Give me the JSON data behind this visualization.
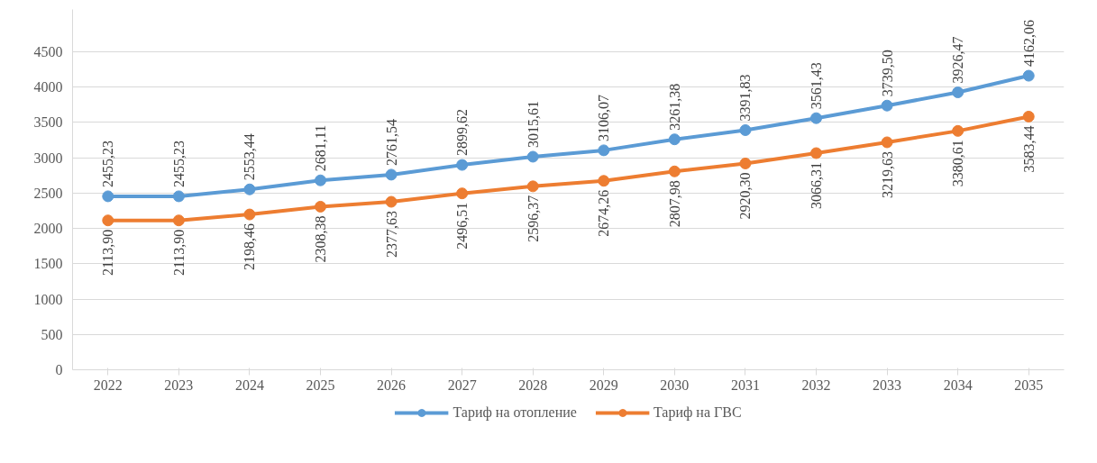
{
  "chart_data": {
    "type": "line",
    "categories": [
      "2022",
      "2023",
      "2024",
      "2025",
      "2026",
      "2027",
      "2028",
      "2029",
      "2030",
      "2031",
      "2032",
      "2033",
      "2034",
      "2035"
    ],
    "series": [
      {
        "name": "Тариф на отопление",
        "color": "#5b9bd5",
        "values": [
          2455.23,
          2455.23,
          2553.44,
          2681.11,
          2761.54,
          2899.62,
          3015.61,
          3106.07,
          3261.38,
          3391.83,
          3561.43,
          3739.5,
          3926.47,
          4162.06
        ],
        "value_labels": [
          "2455,23",
          "2455,23",
          "2553,44",
          "2681,11",
          "2761,54",
          "2899,62",
          "3015,61",
          "3106,07",
          "3261,38",
          "3391,83",
          "3561,43",
          "3739,50",
          "3926,47",
          "4162,06"
        ]
      },
      {
        "name": "Тариф на ГВС",
        "color": "#ed7d31",
        "values": [
          2113.9,
          2113.9,
          2198.46,
          2308.38,
          2377.63,
          2496.51,
          2596.37,
          2674.26,
          2807.98,
          2920.3,
          3066.31,
          3219.63,
          3380.61,
          3583.44
        ],
        "value_labels": [
          "2113,90",
          "2113,90",
          "2198,46",
          "2308,38",
          "2377,63",
          "2496,51",
          "2596,37",
          "2674,26",
          "2807,98",
          "2920,30",
          "3066,31",
          "3219,63",
          "3380,61",
          "3583,44"
        ]
      }
    ],
    "ylim": [
      0,
      5100
    ],
    "yticks": [
      0,
      500,
      1000,
      1500,
      2000,
      2500,
      3000,
      3500,
      4000,
      4500
    ],
    "grid": "y",
    "legend": "bottom",
    "marker": "circle",
    "line_style": "solid"
  }
}
